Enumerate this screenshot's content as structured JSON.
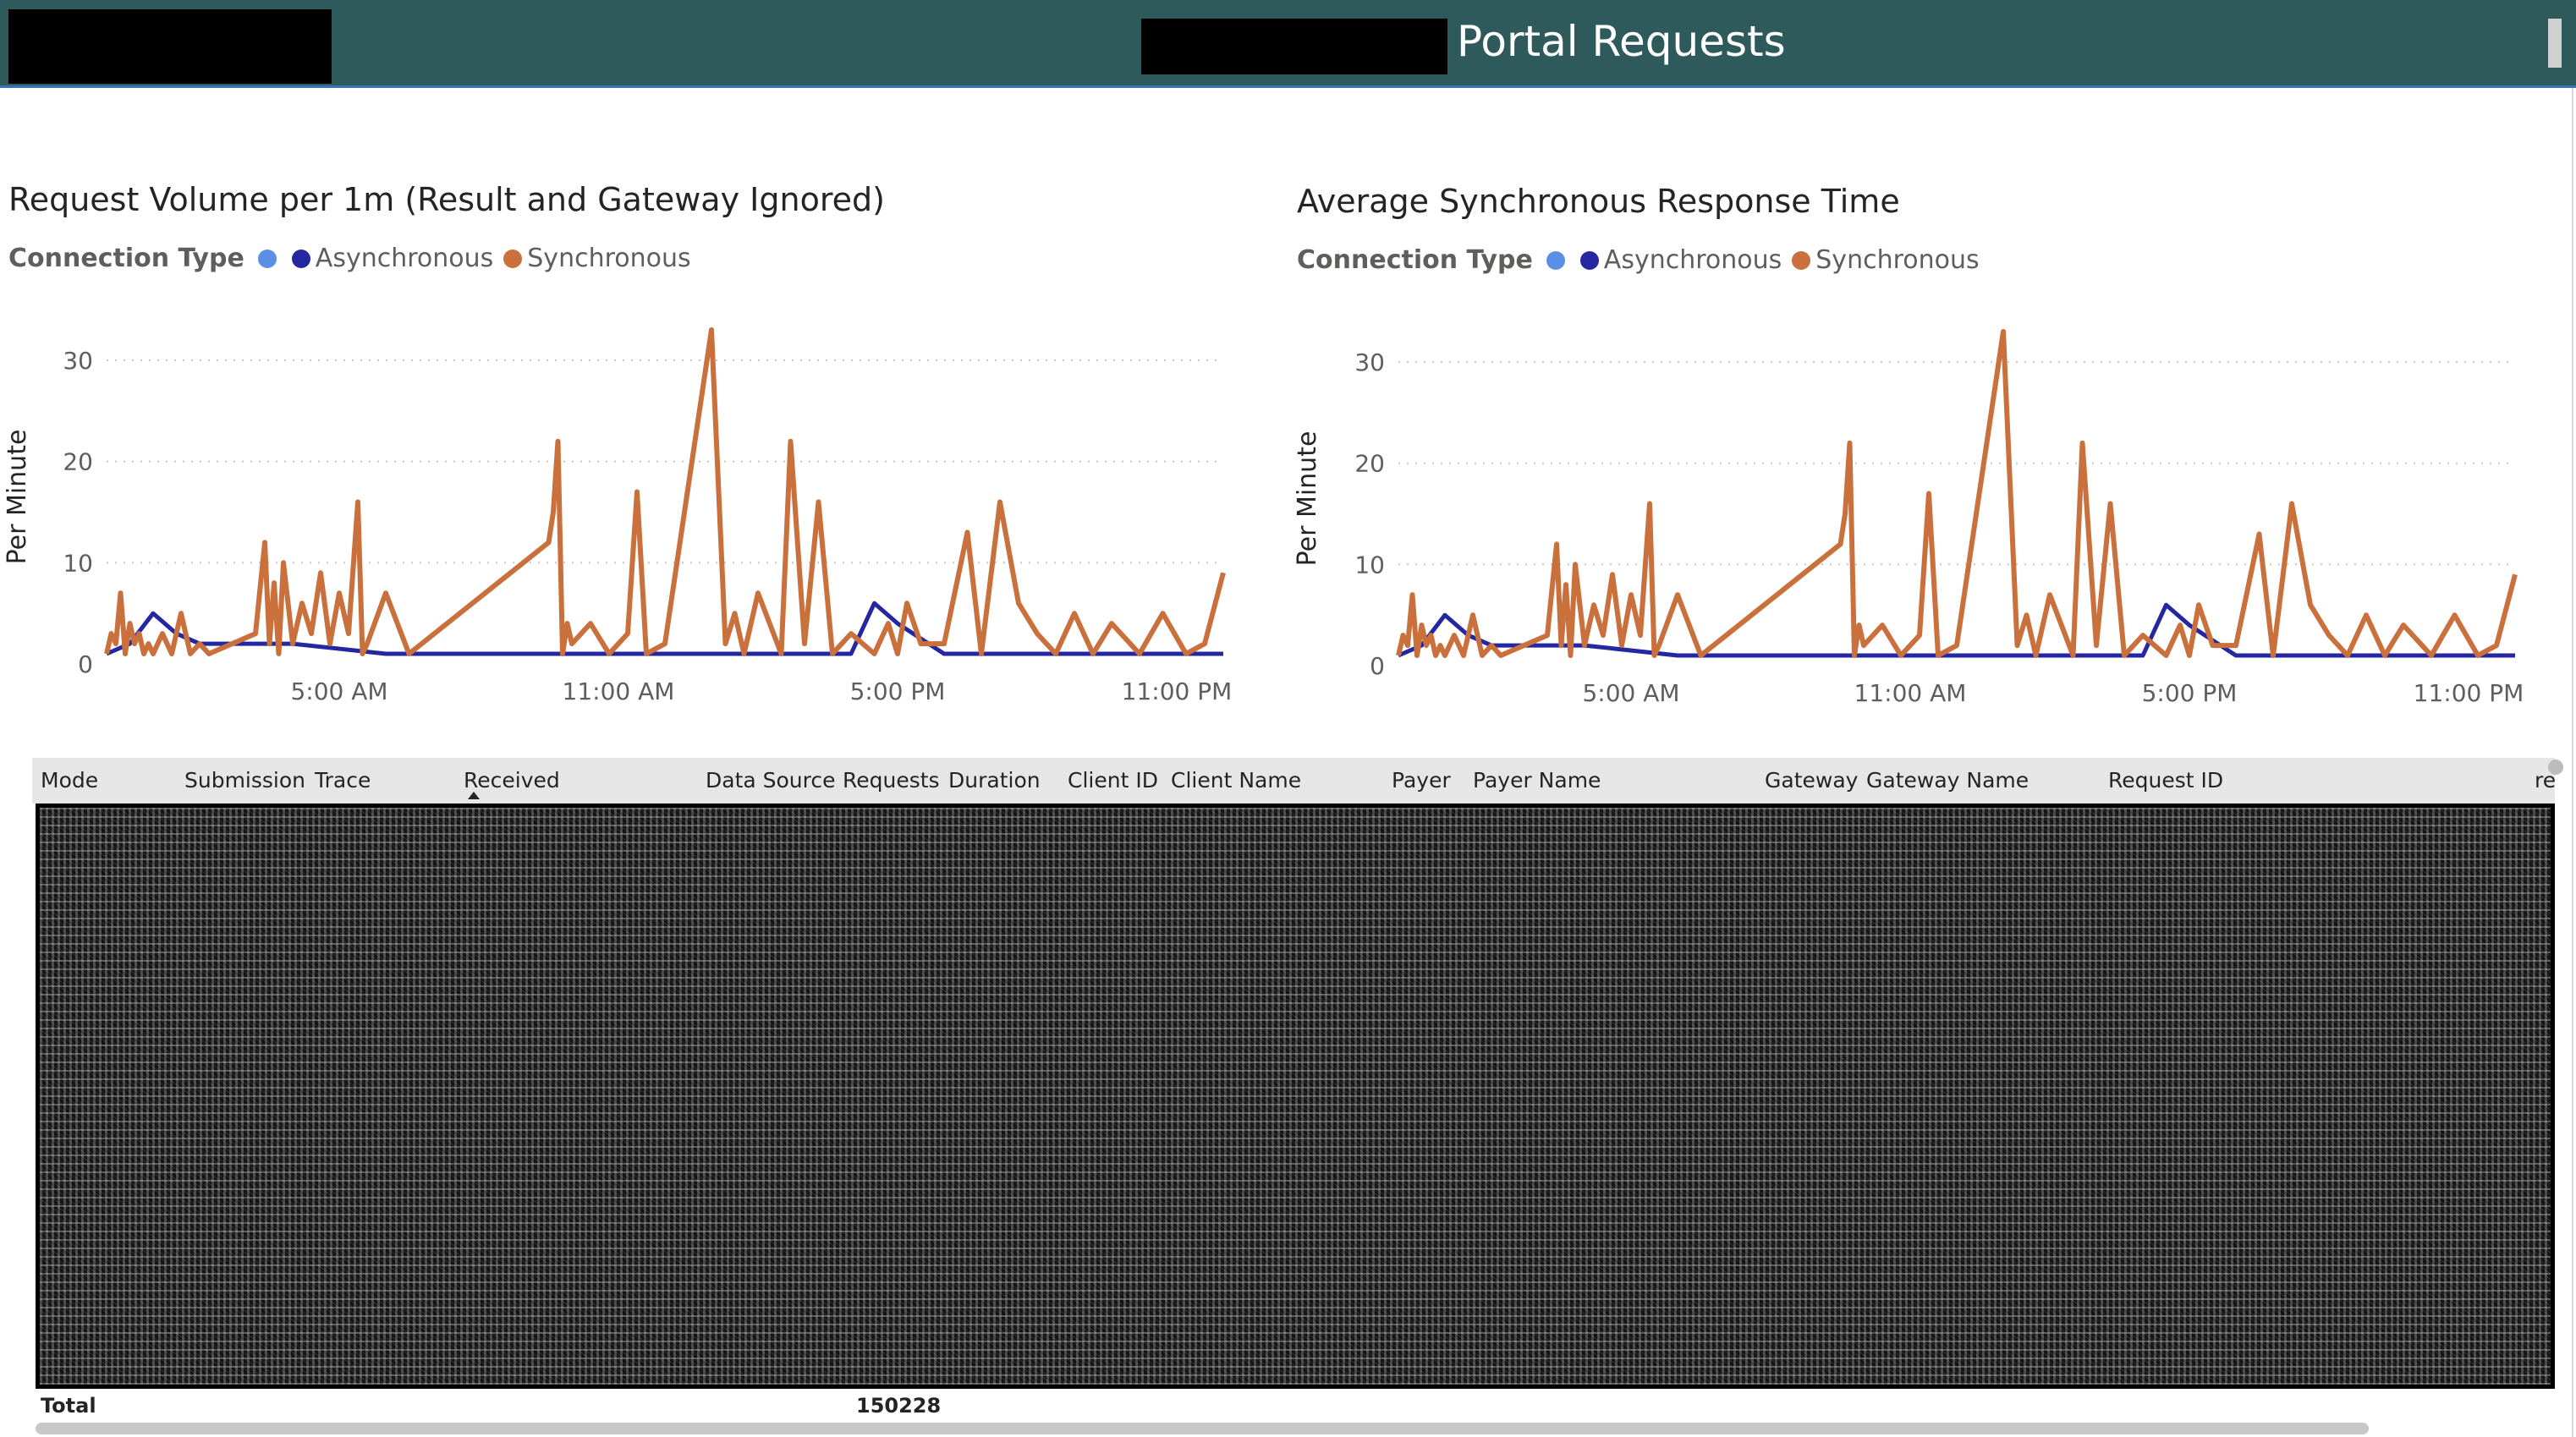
{
  "header": {
    "title": "Portal Requests"
  },
  "colors": {
    "async_light": "#5b8fe6",
    "async": "#2427a0",
    "sync": "#c9703c",
    "header_bg": "#2f5a5c"
  },
  "charts": [
    {
      "title": "Request Volume per 1m (Result and Gateway Ignored)",
      "legend": {
        "title": "Connection Type",
        "items": [
          "Asynchronous",
          "Synchronous"
        ]
      },
      "ylabel": "Per Minute",
      "yticks": [
        "0",
        "10",
        "20",
        "30"
      ],
      "xticks": [
        "5:00 AM",
        "11:00 AM",
        "5:00 PM",
        "11:00 PM"
      ]
    },
    {
      "title": "Average Synchronous Response Time",
      "legend": {
        "title": "Connection Type",
        "items": [
          "Asynchronous",
          "Synchronous"
        ]
      },
      "ylabel": "Per Minute",
      "yticks": [
        "0",
        "10",
        "20",
        "30"
      ],
      "xticks": [
        "5:00 AM",
        "11:00 AM",
        "5:00 PM",
        "11:00 PM"
      ]
    }
  ],
  "chart_data": [
    {
      "type": "line",
      "title": "Request Volume per 1m (Result and Gateway Ignored)",
      "xlabel": "",
      "ylabel": "Per Minute",
      "ylim": [
        0,
        33
      ],
      "x_unit": "hour",
      "xlim": [
        0,
        24
      ],
      "grid": true,
      "legend_placement": "top-left",
      "series": [
        {
          "name": "Synchronous",
          "x": [
            0.0,
            0.1,
            0.2,
            0.3,
            0.4,
            0.5,
            0.6,
            0.7,
            0.8,
            0.9,
            1.0,
            1.2,
            1.4,
            1.6,
            1.8,
            2.0,
            2.2,
            3.2,
            3.4,
            3.5,
            3.6,
            3.7,
            3.8,
            4.0,
            4.2,
            4.4,
            4.6,
            4.8,
            5.0,
            5.2,
            5.4,
            5.5,
            5.6,
            6.0,
            6.5,
            9.5,
            9.6,
            9.7,
            9.8,
            9.9,
            10.0,
            10.4,
            10.8,
            11.2,
            11.4,
            11.6,
            12.0,
            13.0,
            13.3,
            13.5,
            13.7,
            14.0,
            14.5,
            14.7,
            15.0,
            15.3,
            15.6,
            16.0,
            16.5,
            16.8,
            17.0,
            17.2,
            17.5,
            18.0,
            18.5,
            18.8,
            19.2,
            19.6,
            20.0,
            20.4,
            20.8,
            21.2,
            21.6,
            22.2,
            22.7,
            23.2,
            23.6,
            24.0
          ],
          "values": [
            1,
            3,
            2,
            7,
            1,
            4,
            2,
            3,
            1,
            2,
            1,
            3,
            1,
            5,
            1,
            2,
            1,
            3,
            12,
            2,
            8,
            1,
            10,
            2,
            6,
            3,
            9,
            2,
            7,
            3,
            16,
            1,
            2,
            7,
            1,
            12,
            15,
            22,
            1,
            4,
            2,
            4,
            1,
            3,
            17,
            1,
            2,
            33,
            2,
            5,
            1,
            7,
            1,
            22,
            2,
            16,
            1,
            3,
            1,
            4,
            1,
            6,
            2,
            2,
            13,
            1,
            16,
            6,
            3,
            1,
            5,
            1,
            4,
            1,
            5,
            1,
            2,
            9
          ]
        },
        {
          "name": "Asynchronous",
          "x": [
            0.0,
            0.5,
            1.0,
            1.5,
            2.0,
            4.0,
            6.0,
            8.0,
            10.0,
            12.0,
            14.0,
            16.0,
            16.5,
            17.0,
            18.0,
            20.0,
            24.0
          ],
          "values": [
            1,
            2,
            5,
            3,
            2,
            2,
            1,
            1,
            1,
            1,
            1,
            1,
            6,
            4,
            1,
            1,
            1
          ]
        }
      ]
    },
    {
      "type": "line",
      "title": "Average Synchronous Response Time",
      "xlabel": "",
      "ylabel": "Per Minute",
      "ylim": [
        0,
        33
      ],
      "x_unit": "hour",
      "xlim": [
        0,
        24
      ],
      "grid": true,
      "legend_placement": "top-left",
      "series": [
        {
          "name": "Synchronous",
          "x": [
            0.0,
            0.1,
            0.2,
            0.3,
            0.4,
            0.5,
            0.6,
            0.7,
            0.8,
            0.9,
            1.0,
            1.2,
            1.4,
            1.6,
            1.8,
            2.0,
            2.2,
            3.2,
            3.4,
            3.5,
            3.6,
            3.7,
            3.8,
            4.0,
            4.2,
            4.4,
            4.6,
            4.8,
            5.0,
            5.2,
            5.4,
            5.5,
            5.6,
            6.0,
            6.5,
            9.5,
            9.6,
            9.7,
            9.8,
            9.9,
            10.0,
            10.4,
            10.8,
            11.2,
            11.4,
            11.6,
            12.0,
            13.0,
            13.3,
            13.5,
            13.7,
            14.0,
            14.5,
            14.7,
            15.0,
            15.3,
            15.6,
            16.0,
            16.5,
            16.8,
            17.0,
            17.2,
            17.5,
            18.0,
            18.5,
            18.8,
            19.2,
            19.6,
            20.0,
            20.4,
            20.8,
            21.2,
            21.6,
            22.2,
            22.7,
            23.2,
            23.6,
            24.0
          ],
          "values": [
            1,
            3,
            2,
            7,
            1,
            4,
            2,
            3,
            1,
            2,
            1,
            3,
            1,
            5,
            1,
            2,
            1,
            3,
            12,
            2,
            8,
            1,
            10,
            2,
            6,
            3,
            9,
            2,
            7,
            3,
            16,
            1,
            2,
            7,
            1,
            12,
            15,
            22,
            1,
            4,
            2,
            4,
            1,
            3,
            17,
            1,
            2,
            33,
            2,
            5,
            1,
            7,
            1,
            22,
            2,
            16,
            1,
            3,
            1,
            4,
            1,
            6,
            2,
            2,
            13,
            1,
            16,
            6,
            3,
            1,
            5,
            1,
            4,
            1,
            5,
            1,
            2,
            9
          ]
        },
        {
          "name": "Asynchronous",
          "x": [
            0.0,
            0.5,
            1.0,
            1.5,
            2.0,
            4.0,
            6.0,
            8.0,
            10.0,
            12.0,
            14.0,
            16.0,
            16.5,
            17.0,
            18.0,
            20.0,
            24.0
          ],
          "values": [
            1,
            2,
            5,
            3,
            2,
            2,
            1,
            1,
            1,
            1,
            1,
            1,
            6,
            4,
            1,
            1,
            1
          ]
        }
      ]
    }
  ],
  "table": {
    "columns": [
      "Mode",
      "Submission",
      "Trace",
      "Received",
      "Data Source",
      "Requests",
      "Duration",
      "Client ID",
      "Client Name",
      "Payer",
      "Payer Name",
      "Gateway",
      "Gateway Name",
      "Request ID",
      "re"
    ],
    "total_label": "Total",
    "total_value": "150228"
  }
}
